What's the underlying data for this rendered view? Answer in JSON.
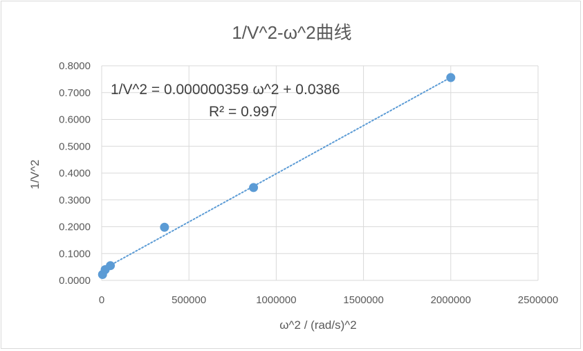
{
  "chart_data": {
    "type": "scatter",
    "title": "1/V^2-ω^2曲线",
    "xlabel": "ω^2 / (rad/s)^2",
    "ylabel": "1/V^2",
    "xlim": [
      0,
      2500000
    ],
    "ylim": [
      0,
      0.8
    ],
    "x_ticks": [
      "0",
      "500000",
      "1000000",
      "1500000",
      "2000000",
      "2500000"
    ],
    "y_ticks": [
      "0.0000",
      "0.1000",
      "0.2000",
      "0.3000",
      "0.4000",
      "0.5000",
      "0.6000",
      "0.7000",
      "0.8000"
    ],
    "grid": true,
    "legend": "none",
    "colors": {
      "marker": "#5b9bd5",
      "trendline": "#5b9bd5",
      "grid": "#d9d9d9",
      "text": "#595959"
    },
    "series": [
      {
        "x": [
          5000,
          20000,
          50000,
          360000,
          870000,
          2000000
        ],
        "y": [
          0.022,
          0.04,
          0.055,
          0.198,
          0.346,
          0.756
        ]
      }
    ],
    "trendline": {
      "type": "linear",
      "slope": 3.59e-07,
      "intercept": 0.0386,
      "equation": "1/V^2 = 0.000000359 ω^2 + 0.0386",
      "r_squared": "R² = 0.997"
    }
  }
}
